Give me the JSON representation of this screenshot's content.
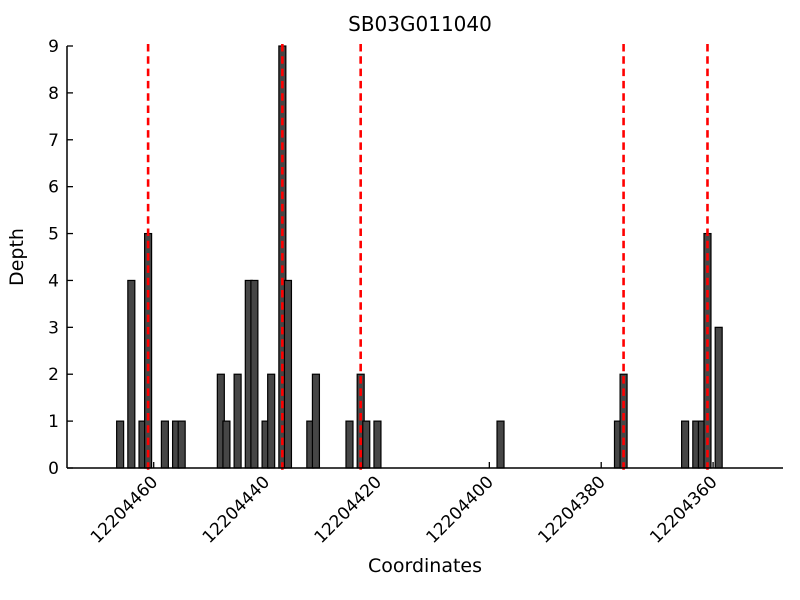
{
  "title": "SB03G011040",
  "chart_data": {
    "type": "bar",
    "title": "SB03G011040",
    "xlabel": "Coordinates",
    "ylabel": "Depth",
    "x_reversed": true,
    "xlim": [
      12204475.5,
      12204347.5
    ],
    "ylim": [
      0,
      9
    ],
    "xticks": [
      12204460,
      12204440,
      12204420,
      12204400,
      12204380,
      12204360
    ],
    "yticks": [
      0,
      1,
      2,
      3,
      4,
      5,
      6,
      7,
      8,
      9
    ],
    "grid": false,
    "legend": null,
    "bar_width_units": 1.25,
    "bars": [
      {
        "coordinate": 12204466,
        "depth": 1
      },
      {
        "coordinate": 12204464,
        "depth": 4
      },
      {
        "coordinate": 12204462,
        "depth": 1
      },
      {
        "coordinate": 12204461,
        "depth": 5
      },
      {
        "coordinate": 12204458,
        "depth": 1
      },
      {
        "coordinate": 12204456,
        "depth": 1
      },
      {
        "coordinate": 12204455,
        "depth": 1
      },
      {
        "coordinate": 12204448,
        "depth": 2
      },
      {
        "coordinate": 12204447,
        "depth": 1
      },
      {
        "coordinate": 12204445,
        "depth": 2
      },
      {
        "coordinate": 12204443,
        "depth": 4
      },
      {
        "coordinate": 12204442,
        "depth": 4
      },
      {
        "coordinate": 12204440,
        "depth": 1
      },
      {
        "coordinate": 12204439,
        "depth": 2
      },
      {
        "coordinate": 12204437,
        "depth": 9
      },
      {
        "coordinate": 12204436,
        "depth": 4
      },
      {
        "coordinate": 12204432,
        "depth": 1
      },
      {
        "coordinate": 12204431,
        "depth": 2
      },
      {
        "coordinate": 12204425,
        "depth": 1
      },
      {
        "coordinate": 12204423,
        "depth": 2
      },
      {
        "coordinate": 12204422,
        "depth": 1
      },
      {
        "coordinate": 12204420,
        "depth": 1
      },
      {
        "coordinate": 12204398,
        "depth": 1
      },
      {
        "coordinate": 12204377,
        "depth": 1
      },
      {
        "coordinate": 12204376,
        "depth": 2
      },
      {
        "coordinate": 12204365,
        "depth": 1
      },
      {
        "coordinate": 12204363,
        "depth": 1
      },
      {
        "coordinate": 12204362,
        "depth": 1
      },
      {
        "coordinate": 12204361,
        "depth": 5
      },
      {
        "coordinate": 12204359,
        "depth": 3
      }
    ],
    "red_dashed_lines": [
      12204461,
      12204437,
      12204423,
      12204376,
      12204361
    ],
    "colors": {
      "bar_fill": "#464646",
      "bar_stroke": "#000000",
      "marker_line": "#ff0000",
      "axis": "#000000",
      "text": "#000000",
      "background": "#ffffff"
    }
  }
}
